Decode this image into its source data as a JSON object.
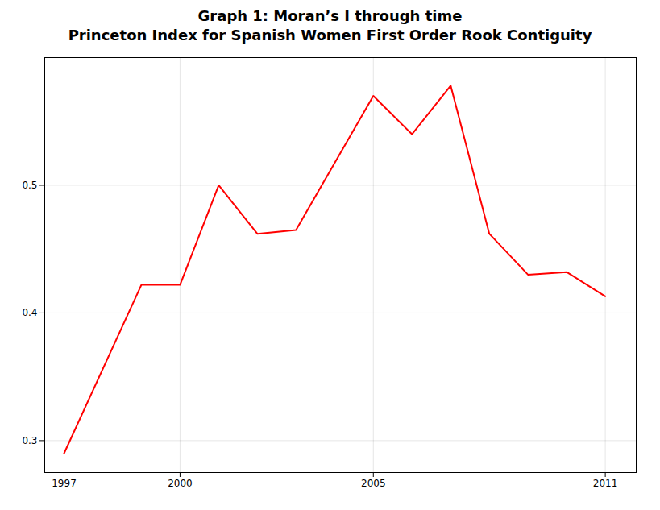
{
  "chart_data": {
    "type": "line",
    "title": "Graph 1: Moran’s I through time",
    "subtitle": "Princeton Index for Spanish Women First Order Rook Contiguity",
    "x": [
      1997,
      1999,
      2000,
      2001,
      2002,
      2003,
      2005,
      2006,
      2007,
      2008,
      2009,
      2010,
      2011
    ],
    "values": [
      0.29,
      0.422,
      0.422,
      0.5,
      0.462,
      0.465,
      0.57,
      0.54,
      0.578,
      0.462,
      0.43,
      0.432,
      0.413
    ],
    "color": "#ff0000",
    "xlim": [
      1996.5,
      2011.8
    ],
    "ylim": [
      0.275,
      0.6
    ],
    "xticks": [
      1997,
      2000,
      2005,
      2011
    ],
    "yticks": [
      0.3,
      0.4,
      0.5
    ],
    "grid": true
  }
}
